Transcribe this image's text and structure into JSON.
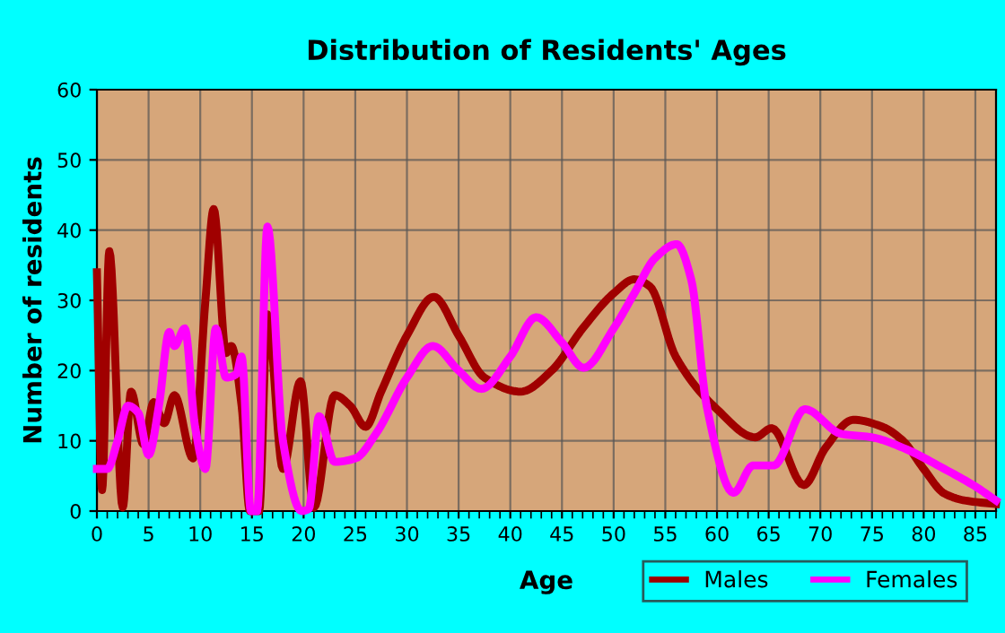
{
  "chart_data": {
    "type": "line",
    "title": "Distribution of Residents' Ages",
    "xlabel": "Age",
    "ylabel": "Number of residents",
    "xlim": [
      0,
      87
    ],
    "xticks": [
      0,
      5,
      10,
      15,
      20,
      25,
      30,
      35,
      40,
      45,
      50,
      55,
      60,
      65,
      70,
      75,
      80,
      85
    ],
    "ylim": [
      0,
      60
    ],
    "yticks": [
      0,
      10,
      20,
      30,
      40,
      50,
      60
    ],
    "grid": true,
    "legend": "bottom right",
    "marker": "none",
    "line_style": "solid",
    "series": [
      {
        "name": "Males",
        "color": "#a00000",
        "x": [
          0,
          0.5,
          1.2,
          2.5,
          3.3,
          4.5,
          5.5,
          6.5,
          7.5,
          9.3,
          10.5,
          11.3,
          12.5,
          13,
          14,
          14.8,
          15.7,
          16.5,
          18,
          19.7,
          21,
          23,
          24.5,
          26,
          27.5,
          30,
          32.6,
          35,
          37.5,
          41,
          44,
          47,
          50,
          52,
          53.5,
          56,
          60,
          63.7,
          65.3,
          68.4,
          70.5,
          73.2,
          76,
          78,
          80,
          82,
          84,
          87
        ],
        "values": [
          34,
          3,
          37,
          0.5,
          17,
          9.5,
          15.5,
          12.5,
          16.5,
          7.5,
          30,
          43,
          22.5,
          23.5,
          15,
          0,
          0,
          28,
          6,
          18.5,
          0.5,
          16.5,
          15,
          12,
          17,
          25,
          30.5,
          25,
          19,
          17,
          20,
          26,
          31,
          33,
          32,
          22,
          14.5,
          10.5,
          11.8,
          3.7,
          9,
          13,
          12,
          10,
          6,
          2.5,
          1.5,
          1
        ]
      },
      {
        "name": "Females",
        "color": "#ff00ff",
        "x": [
          0,
          1,
          2,
          3,
          4,
          5,
          6,
          7,
          7.5,
          8.5,
          9.5,
          10.5,
          11.5,
          12.5,
          13.5,
          14,
          14.9,
          15.5,
          16.5,
          18,
          19.8,
          20.5,
          21.5,
          23,
          25,
          27,
          30,
          32.5,
          35,
          37.2,
          40,
          42.5,
          45,
          47.1,
          50,
          52,
          54,
          56.1,
          57.5,
          59,
          61.6,
          63.5,
          65.5,
          68.5,
          72,
          75,
          78,
          82,
          85,
          87
        ],
        "values": [
          6,
          6,
          10,
          15,
          14,
          8,
          15,
          25.5,
          23.5,
          26,
          12,
          6,
          26,
          19,
          19.5,
          22,
          0,
          0,
          40.5,
          10,
          0,
          0.3,
          13.5,
          7,
          7.5,
          11,
          19,
          23.5,
          20,
          17.4,
          22,
          27.6,
          24,
          20.4,
          26,
          31,
          36,
          38,
          33,
          15,
          2.6,
          6.5,
          6.5,
          14.5,
          11,
          10.5,
          9,
          6,
          3.5,
          1.5
        ]
      }
    ]
  }
}
